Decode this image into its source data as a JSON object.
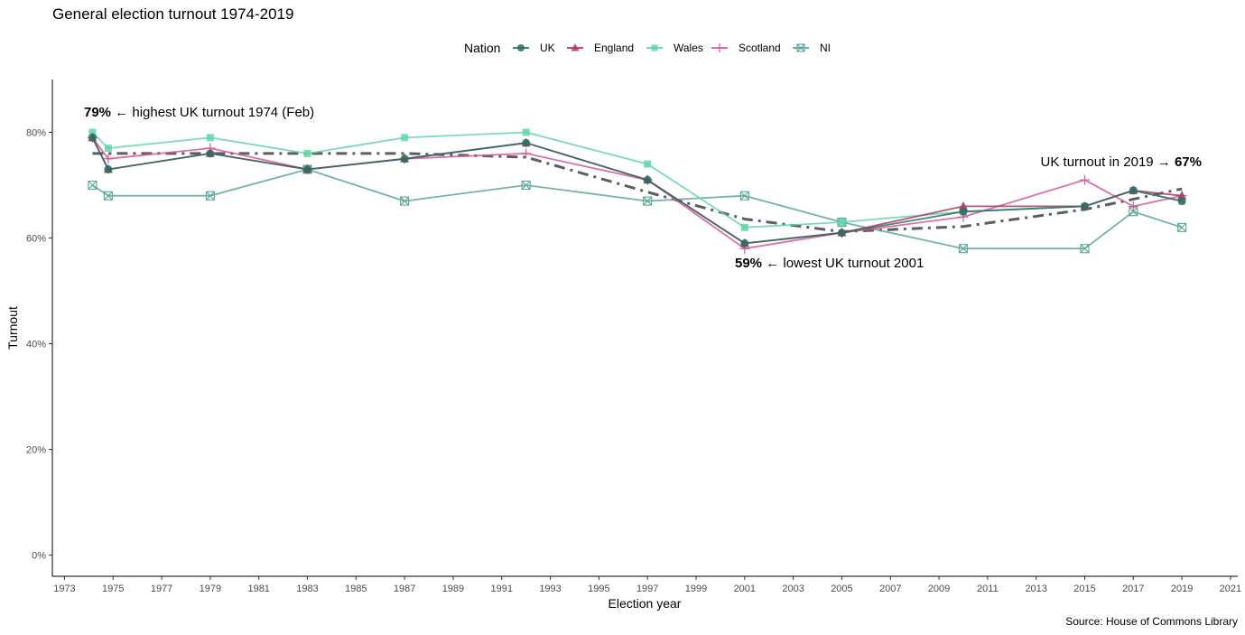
{
  "chart_data": {
    "type": "line",
    "title": "General election turnout 1974-2019",
    "xlabel": "Election year",
    "ylabel": "Turnout",
    "source": "Source: House of Commons Library",
    "xlim": [
      1972.5,
      2021.3
    ],
    "ylim": [
      -0.04,
      0.9
    ],
    "x_ticks": [
      1973,
      1975,
      1977,
      1979,
      1981,
      1983,
      1985,
      1987,
      1989,
      1991,
      1993,
      1995,
      1997,
      1999,
      2001,
      2003,
      2005,
      2007,
      2009,
      2011,
      2013,
      2015,
      2017,
      2019,
      2021
    ],
    "y_ticks": [
      0,
      0.2,
      0.4,
      0.6,
      0.8
    ],
    "y_tick_labels": [
      "0%",
      "20%",
      "40%",
      "60%",
      "80%"
    ],
    "grid": false,
    "legend": {
      "title": "Nation",
      "position": "top",
      "entries": [
        "UK",
        "England",
        "Wales",
        "Scotland",
        "NI"
      ]
    },
    "series": [
      {
        "name": "UK",
        "color": "#2e6b64",
        "marker": "circle",
        "x": [
          1974.15,
          1974.8,
          1979,
          1983,
          1987,
          1992,
          1997,
          2001,
          2005,
          2010,
          2015,
          2017,
          2019
        ],
        "values": [
          0.79,
          0.73,
          0.76,
          0.73,
          0.75,
          0.78,
          0.71,
          0.59,
          0.61,
          0.65,
          0.66,
          0.69,
          0.67
        ]
      },
      {
        "name": "England",
        "color": "#a83a55",
        "marker": "triangle",
        "x": [
          1974.15,
          1974.8,
          1979,
          1983,
          1987,
          1992,
          1997,
          2001,
          2005,
          2010,
          2015,
          2017,
          2019
        ],
        "values": [
          0.79,
          0.73,
          0.76,
          0.73,
          0.75,
          0.78,
          0.71,
          0.59,
          0.61,
          0.66,
          0.66,
          0.69,
          0.68
        ]
      },
      {
        "name": "Wales",
        "color": "#5fd6a7",
        "marker": "square",
        "x": [
          1974.15,
          1974.8,
          1979,
          1983,
          1987,
          1992,
          1997,
          2001,
          2005,
          2010,
          2015,
          2017,
          2019
        ],
        "values": [
          0.8,
          0.77,
          0.79,
          0.76,
          0.79,
          0.8,
          0.74,
          0.62,
          0.63,
          0.65,
          0.66,
          0.69,
          0.67
        ]
      },
      {
        "name": "Scotland",
        "color": "#d6589a",
        "marker": "plus",
        "x": [
          1974.15,
          1974.8,
          1979,
          1983,
          1987,
          1992,
          1997,
          2001,
          2005,
          2010,
          2015,
          2017,
          2019
        ],
        "values": [
          0.79,
          0.75,
          0.77,
          0.73,
          0.75,
          0.76,
          0.71,
          0.58,
          0.61,
          0.64,
          0.71,
          0.66,
          0.68
        ]
      },
      {
        "name": "NI",
        "color": "#5aa796",
        "marker": "square-cross",
        "x": [
          1974.15,
          1974.8,
          1979,
          1983,
          1987,
          1992,
          1997,
          2001,
          2005,
          2010,
          2015,
          2017,
          2019
        ],
        "values": [
          0.7,
          0.68,
          0.68,
          0.73,
          0.67,
          0.7,
          0.67,
          0.68,
          0.63,
          0.58,
          0.58,
          0.65,
          0.62
        ]
      }
    ],
    "trend": {
      "style": "dash-dot",
      "color": "#555555",
      "x": [
        1974.15,
        1983,
        1987,
        1992,
        1997,
        2001,
        2005,
        2010,
        2015,
        2019
      ],
      "values": [
        0.76,
        0.76,
        0.76,
        0.753,
        0.687,
        0.636,
        0.612,
        0.622,
        0.654,
        0.693
      ]
    },
    "annotations": [
      {
        "bold": "79%",
        "text": " ← highest UK turnout 1974 (Feb)",
        "anchor": "start"
      },
      {
        "bold": "59%",
        "text": " ← lowest UK turnout 2001",
        "anchor": "start"
      },
      {
        "text": "UK turnout in 2019 → ",
        "bold": "67%",
        "anchor": "end"
      }
    ]
  }
}
